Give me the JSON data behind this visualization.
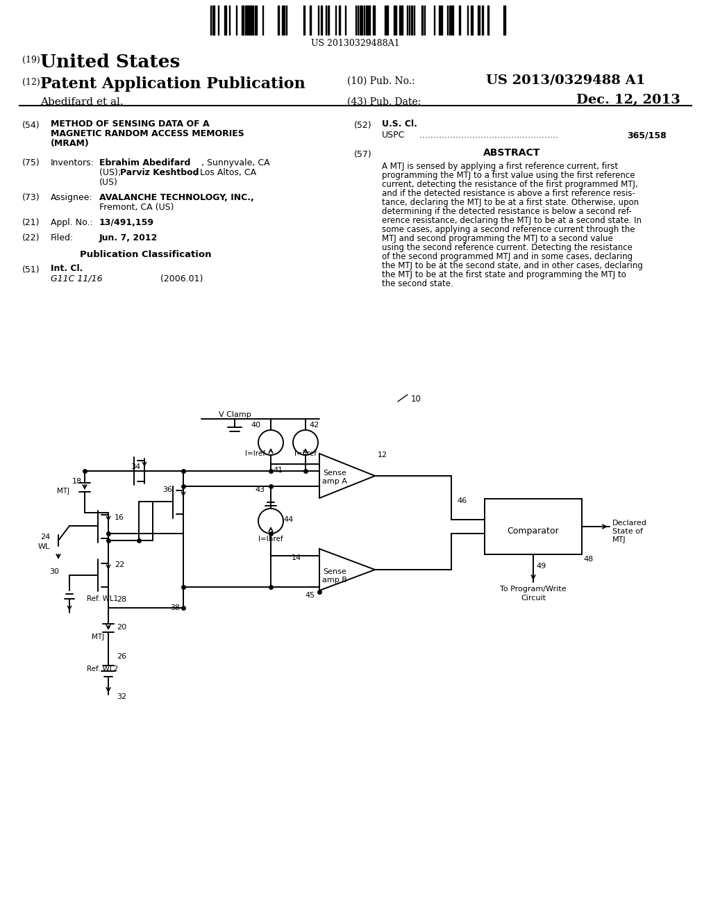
{
  "bg_color": "#ffffff",
  "barcode_text": "US 20130329488A1",
  "country_prefix": "(19)",
  "country": "United States",
  "pub_prefix": "(12)",
  "pub_type": "Patent Application Publication",
  "pub_no_label": "(10) Pub. No.:",
  "pub_no": "US 2013/0329488 A1",
  "inventor_label": "Abedifard et al.",
  "pub_date_label": "(43) Pub. Date:",
  "pub_date": "Dec. 12, 2013",
  "title_num": "(54)",
  "title_line1": "METHOD OF SENSING DATA OF A",
  "title_line2": "MAGNETIC RANDOM ACCESS MEMORIES",
  "title_line3": "(MRAM)",
  "inv_num": "(75)",
  "inv_label": "Inventors:",
  "inv_name1": "Ebrahim Abedifard",
  "inv_loc1": ", Sunnyvale, CA",
  "inv_name2": "Parviz Keshtbod",
  "inv_loc2": ", Los Altos, CA",
  "inv_us": "(US)",
  "inv_us2": "(US); ",
  "asgn_num": "(73)",
  "asgn_label": "Assignee:",
  "asgn_name": "AVALANCHE TECHNOLOGY, INC.,",
  "asgn_loc": "Fremont, CA (US)",
  "appl_num": "(21)",
  "appl_label": "Appl. No.:",
  "appl_no": "13/491,159",
  "filed_num": "(22)",
  "filed_label": "Filed:",
  "filed_date": "Jun. 7, 2012",
  "pubclass_header": "Publication Classification",
  "intcl_num": "(51)",
  "intcl_label": "Int. Cl.",
  "intcl_class": "G11C 11/16",
  "intcl_year": "(2006.01)",
  "uscl_num": "(52)",
  "uscl_label": "U.S. Cl.",
  "uspc_label": "USPC",
  "uspc_val": "365/158",
  "abs_num": "(57)",
  "abs_header": "ABSTRACT",
  "abs_lines": [
    "A MTJ is sensed by applying a first reference current, first",
    "programming the MTJ to a first value using the first reference",
    "current, detecting the resistance of the first programmed MTJ,",
    "and if the detected resistance is above a first reference resis-",
    "tance, declaring the MTJ to be at a first state. Otherwise, upon",
    "determining if the detected resistance is below a second ref-",
    "erence resistance, declaring the MTJ to be at a second state. In",
    "some cases, applying a second reference current through the",
    "MTJ and second programming the MTJ to a second value",
    "using the second reference current. Detecting the resistance",
    "of the second programmed MTJ and in some cases, declaring",
    "the MTJ to be at the second state, and in other cases, declaring",
    "the MTJ to be at the first state and programming the MTJ to",
    "the second state."
  ]
}
